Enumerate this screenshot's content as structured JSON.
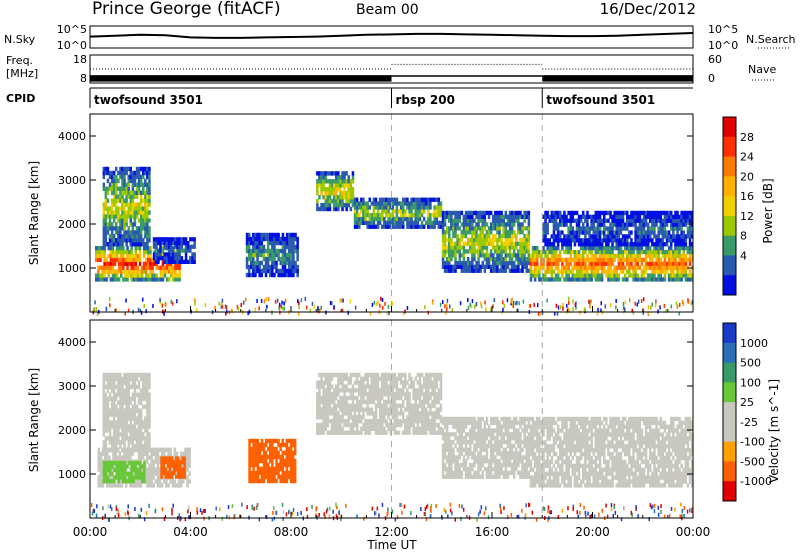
{
  "header": {
    "station": "Prince George (fitACF)",
    "beam": "Beam 00",
    "date": "16/Dec/2012"
  },
  "chart_data": [
    {
      "type": "line",
      "panel": "noise",
      "left_label": "N.Sky",
      "right_label": "N.Search",
      "y_ticks_left": [
        "10^5",
        "10^0"
      ],
      "y_ticks_right": [
        "10^5",
        "10^0"
      ],
      "x": [
        0,
        1,
        2,
        3,
        4,
        5,
        6,
        7,
        8,
        9,
        10,
        11,
        12,
        13,
        14,
        15,
        16,
        17,
        18,
        19,
        20,
        21,
        22,
        23,
        24
      ],
      "series": [
        {
          "values": [
            2.6,
            2.8,
            3.0,
            2.9,
            2.4,
            2.3,
            2.3,
            2.4,
            2.5,
            2.6,
            2.8,
            3.0,
            3.1,
            3.2,
            3.2,
            3.1,
            3.0,
            2.9,
            2.8,
            2.7,
            2.7,
            2.8,
            3.0,
            3.2,
            3.4
          ]
        }
      ]
    },
    {
      "type": "line",
      "panel": "frequency",
      "left_label_lines": [
        "Freq.",
        "[MHz]"
      ],
      "right_label": "Nave",
      "y_ticks_left": [
        "18",
        "8"
      ],
      "y_ticks_right": [
        "60",
        "0"
      ],
      "segments": [
        {
          "start_hour": 0,
          "end_hour": 12,
          "freq_mhz": [
            8.5,
            10.8
          ],
          "nave": 30
        },
        {
          "start_hour": 12,
          "end_hour": 18,
          "freq_mhz": [
            10.5,
            10.5
          ],
          "nave": 40
        },
        {
          "start_hour": 18,
          "end_hour": 24,
          "freq_mhz": [
            8.5,
            10.8
          ],
          "nave": 30
        }
      ]
    },
    {
      "type": "table",
      "panel": "cpid",
      "label": "CPID",
      "entries": [
        {
          "start_hour": 0,
          "name": "twofsound 3501"
        },
        {
          "start_hour": 12,
          "name": "rbsp 200"
        },
        {
          "start_hour": 18,
          "name": "twofsound 3501"
        }
      ]
    },
    {
      "type": "heatmap",
      "panel": "power",
      "ylabel": "Slant Range [km]",
      "xlabel": "",
      "xlim": [
        0,
        24
      ],
      "ylim": [
        0,
        4500
      ],
      "y_ticks": [
        1000,
        2000,
        3000,
        4000
      ],
      "vertical_markers": [
        12,
        18
      ],
      "colorbar": {
        "label": "Power [dB]",
        "ticks": [
          28,
          24,
          20,
          16,
          12,
          8,
          4
        ],
        "colors": [
          "#e00000",
          "#ff3000",
          "#ff7a00",
          "#ffb000",
          "#f0d000",
          "#9cc800",
          "#3a9a68",
          "#2a5ab0",
          "#0010e0"
        ]
      },
      "regions": [
        {
          "t0": 0.2,
          "t1": 3.6,
          "r0": 700,
          "r1": 1500,
          "level": 24
        },
        {
          "t0": 0.5,
          "t1": 2.4,
          "r0": 1500,
          "r1": 3300,
          "level": 14
        },
        {
          "t0": 2.5,
          "t1": 4.2,
          "r0": 1100,
          "r1": 1700,
          "level": 8
        },
        {
          "t0": 6.2,
          "t1": 8.3,
          "r0": 800,
          "r1": 1800,
          "level": 10
        },
        {
          "t0": 9.0,
          "t1": 10.5,
          "r0": 2300,
          "r1": 3200,
          "level": 16
        },
        {
          "t0": 10.5,
          "t1": 14.0,
          "r0": 1900,
          "r1": 2600,
          "level": 14
        },
        {
          "t0": 14.0,
          "t1": 17.5,
          "r0": 900,
          "r1": 2300,
          "level": 14
        },
        {
          "t0": 17.5,
          "t1": 24.0,
          "r0": 700,
          "r1": 1500,
          "level": 22
        },
        {
          "t0": 18.0,
          "t1": 24.0,
          "r0": 1500,
          "r1": 2300,
          "level": 8
        }
      ]
    },
    {
      "type": "heatmap",
      "panel": "velocity",
      "ylabel": "Slant Range [km]",
      "xlabel": "Time UT",
      "xlim": [
        0,
        24
      ],
      "ylim": [
        0,
        4500
      ],
      "y_ticks": [
        1000,
        2000,
        3000,
        4000
      ],
      "x_ticks": [
        "00:00",
        "04:00",
        "08:00",
        "12:00",
        "16:00",
        "20:00",
        "00:00"
      ],
      "vertical_markers": [
        12,
        18
      ],
      "colorbar": {
        "label": "Velocity [m s^-1]",
        "ticks": [
          1000,
          500,
          100,
          25,
          -25,
          -100,
          -500,
          -1000
        ],
        "colors": [
          "#1a3ac8",
          "#2a70b8",
          "#3a9a68",
          "#68c838",
          "#c8c8c0",
          "#c8c8c0",
          "#ffa000",
          "#ff6000",
          "#e00000"
        ]
      },
      "regions": [
        {
          "t0": 0.3,
          "t1": 4.0,
          "r0": 700,
          "r1": 1600,
          "velocity": 0
        },
        {
          "t0": 0.5,
          "t1": 2.2,
          "r0": 800,
          "r1": 1300,
          "velocity": 60
        },
        {
          "t0": 0.5,
          "t1": 2.4,
          "r0": 1500,
          "r1": 3300,
          "velocity": 0
        },
        {
          "t0": 2.8,
          "t1": 3.8,
          "r0": 900,
          "r1": 1400,
          "velocity": -300
        },
        {
          "t0": 6.3,
          "t1": 8.2,
          "r0": 800,
          "r1": 1800,
          "velocity": -400
        },
        {
          "t0": 9.0,
          "t1": 14.0,
          "r0": 1900,
          "r1": 3300,
          "velocity": 0
        },
        {
          "t0": 14.0,
          "t1": 17.5,
          "r0": 900,
          "r1": 2300,
          "velocity": 0
        },
        {
          "t0": 17.5,
          "t1": 24.0,
          "r0": 700,
          "r1": 2300,
          "velocity": 0
        }
      ]
    }
  ]
}
